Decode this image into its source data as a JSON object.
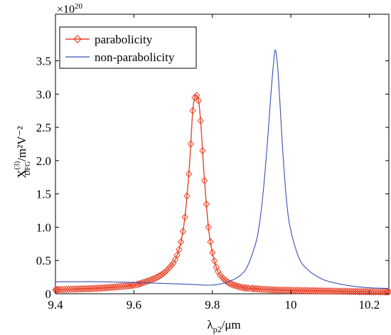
{
  "chart_data": {
    "type": "line",
    "xlabel": {
      "main": "λ",
      "sub": "p2",
      "tail": "/μm"
    },
    "ylabel": {
      "main": "X",
      "sub": "DFG",
      "sup": "(3)",
      "tail": "/m²V⁻²"
    },
    "multiplier": {
      "base": "×10",
      "exp": "20"
    },
    "xlim": [
      9.4,
      10.25
    ],
    "ylim": [
      0,
      4.2
    ],
    "xticks": [
      9.4,
      9.6,
      9.8,
      10.0,
      10.2
    ],
    "xtick_labels": [
      "9.4",
      "9.6",
      "9.8",
      "10",
      "10.2"
    ],
    "yticks": [
      0,
      0.5,
      1.0,
      1.5,
      2.0,
      2.5,
      3.0,
      3.5
    ],
    "ytick_labels": [
      "0",
      "0.5",
      "1.0",
      "1.5",
      "2.0",
      "2.5",
      "3.0",
      "3.5"
    ],
    "grid": false,
    "legend_position": "top-left",
    "series": [
      {
        "name": "parabolicity",
        "color": "#e8452c",
        "marker": "diamond",
        "x": [
          9.4,
          9.45,
          9.5,
          9.55,
          9.6,
          9.62,
          9.64,
          9.66,
          9.68,
          9.7,
          9.71,
          9.72,
          9.73,
          9.74,
          9.745,
          9.75,
          9.755,
          9.76,
          9.765,
          9.77,
          9.775,
          9.78,
          9.79,
          9.8,
          9.81,
          9.82,
          9.84,
          9.86,
          9.88,
          9.9,
          9.95,
          10.0,
          10.05,
          10.1,
          10.15,
          10.2,
          10.25
        ],
        "y": [
          0.06,
          0.07,
          0.08,
          0.1,
          0.13,
          0.16,
          0.2,
          0.25,
          0.33,
          0.46,
          0.58,
          0.78,
          1.15,
          1.8,
          2.25,
          2.75,
          2.95,
          2.98,
          2.9,
          2.6,
          2.15,
          1.7,
          1.0,
          0.62,
          0.4,
          0.28,
          0.17,
          0.12,
          0.09,
          0.08,
          0.06,
          0.05,
          0.045,
          0.04,
          0.035,
          0.03,
          0.03
        ]
      },
      {
        "name": "non-parabolicity",
        "color": "#3a4fb5",
        "marker": "none",
        "x": [
          9.4,
          9.5,
          9.6,
          9.7,
          9.75,
          9.8,
          9.84,
          9.87,
          9.89,
          9.91,
          9.92,
          9.93,
          9.94,
          9.95,
          9.955,
          9.96,
          9.965,
          9.97,
          9.98,
          9.99,
          10.0,
          10.02,
          10.04,
          10.07,
          10.1,
          10.15,
          10.2,
          10.25
        ],
        "y": [
          0.18,
          0.18,
          0.17,
          0.15,
          0.14,
          0.13,
          0.18,
          0.27,
          0.42,
          0.75,
          1.05,
          1.55,
          2.25,
          3.05,
          3.4,
          3.66,
          3.5,
          3.1,
          2.1,
          1.35,
          0.95,
          0.55,
          0.38,
          0.25,
          0.18,
          0.12,
          0.09,
          0.08
        ]
      }
    ]
  }
}
